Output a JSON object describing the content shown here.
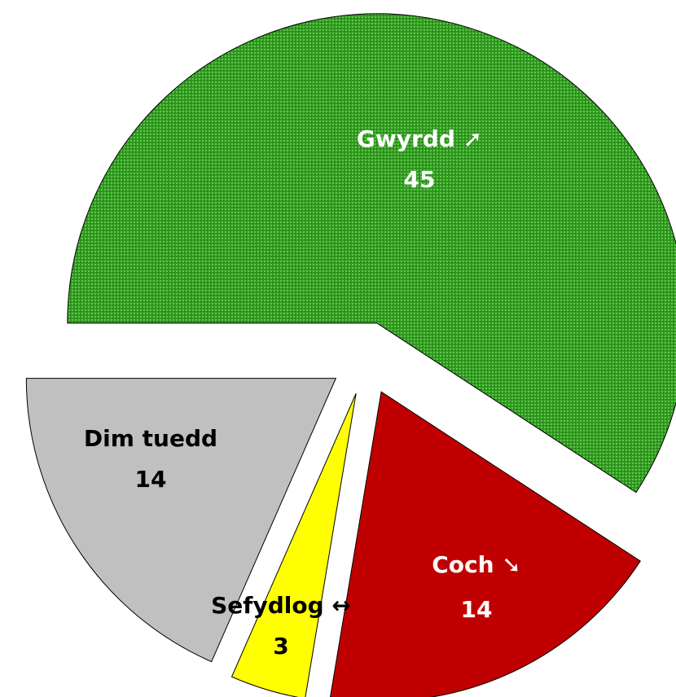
{
  "chart_data": {
    "type": "pie",
    "categories": [
      "Gwyrdd ➚",
      "Coch ➘",
      "Sefydlog ↔",
      "Dim tuedd"
    ],
    "values": [
      45,
      14,
      3,
      14
    ],
    "colors": [
      "#2f9a1f",
      "#c00000",
      "#ffff00",
      "#c0c0c0"
    ],
    "label_colors": [
      "#ffffff",
      "#ffffff",
      "#000000",
      "#000000"
    ]
  }
}
